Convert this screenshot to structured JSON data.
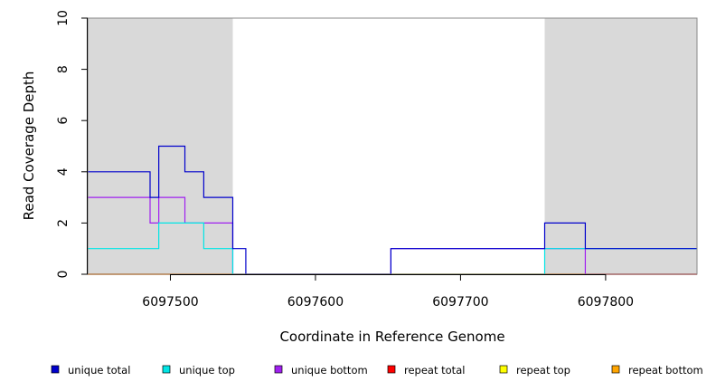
{
  "chart_data": {
    "type": "line",
    "xlabel": "Coordinate in Reference Genome",
    "ylabel": "Read Coverage Depth",
    "xlim": [
      6097443,
      6097863
    ],
    "ylim": [
      0,
      10
    ],
    "x_ticks": [
      6097500,
      6097600,
      6097700,
      6097800
    ],
    "x_tick_labels": [
      "6097500",
      "6097600",
      "6097700",
      "6097800"
    ],
    "y_ticks": [
      0,
      2,
      4,
      6,
      8,
      10
    ],
    "y_tick_labels": [
      "0",
      "2",
      "4",
      "6",
      "8",
      "10"
    ],
    "shaded_regions": [
      [
        6097443,
        6097543
      ],
      [
        6097758,
        6097863
      ]
    ],
    "shade_color": "#d9d9d9",
    "legend_placement": "bottom",
    "series": [
      {
        "name": "unique total",
        "color": "#0000cc",
        "steps": [
          [
            6097443,
            4
          ],
          [
            6097486,
            3
          ],
          [
            6097492,
            5
          ],
          [
            6097510,
            4
          ],
          [
            6097523,
            3
          ],
          [
            6097543,
            1
          ],
          [
            6097552,
            0
          ],
          [
            6097652,
            1
          ],
          [
            6097758,
            2
          ],
          [
            6097786,
            1
          ],
          [
            6097863,
            1
          ]
        ]
      },
      {
        "name": "unique top",
        "color": "#00e5e5",
        "steps": [
          [
            6097443,
            1
          ],
          [
            6097492,
            2
          ],
          [
            6097523,
            1
          ],
          [
            6097543,
            0
          ],
          [
            6097758,
            1
          ],
          [
            6097786,
            1
          ],
          [
            6097863,
            1
          ]
        ]
      },
      {
        "name": "unique bottom",
        "color": "#a020f0",
        "steps": [
          [
            6097443,
            3
          ],
          [
            6097486,
            2
          ],
          [
            6097492,
            3
          ],
          [
            6097510,
            2
          ],
          [
            6097543,
            0
          ],
          [
            6097652,
            1
          ],
          [
            6097758,
            1
          ],
          [
            6097786,
            0
          ],
          [
            6097863,
            0
          ]
        ]
      },
      {
        "name": "repeat total",
        "color": "#ff0000",
        "steps": [
          [
            6097443,
            0
          ],
          [
            6097863,
            0
          ]
        ]
      },
      {
        "name": "repeat top",
        "color": "#ffff00",
        "steps": [
          [
            6097443,
            0
          ],
          [
            6097863,
            0
          ]
        ]
      },
      {
        "name": "repeat bottom",
        "color": "#ffa500",
        "steps": [
          [
            6097443,
            0
          ],
          [
            6097863,
            0
          ]
        ]
      }
    ]
  }
}
